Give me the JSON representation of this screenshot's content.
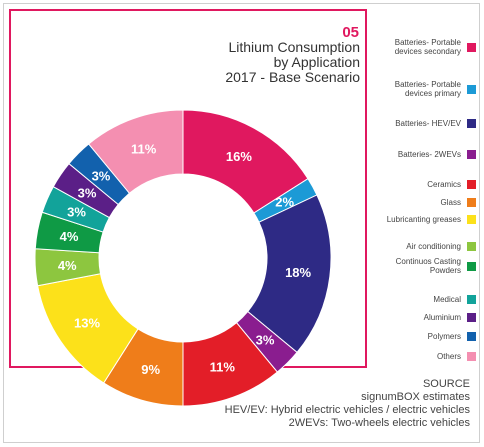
{
  "number": "05",
  "title_lines": [
    "Lithium Consumption",
    "by Application",
    "2017 - Base Scenario"
  ],
  "chart_data": {
    "type": "pie",
    "variant": "donut",
    "slices": [
      {
        "label": "Batteries- Portable devices secondary",
        "value": 16,
        "display": "16%",
        "color": "#e0185f"
      },
      {
        "label": "Batteries- Portable devices primary",
        "value": 2,
        "display": "2%",
        "color": "#1c9ad6"
      },
      {
        "label": "Batteries- HEV/EV",
        "value": 18,
        "display": "18%",
        "color": "#2e2a85"
      },
      {
        "label": "Batteries- 2WEVs",
        "value": 3,
        "display": "3%",
        "color": "#8a1d8f"
      },
      {
        "label": "Ceramics",
        "value": 11,
        "display": "11%",
        "color": "#e31e28"
      },
      {
        "label": "Glass",
        "value": 9,
        "display": "9%",
        "color": "#ef7d1a"
      },
      {
        "label": "Lubricanting greases",
        "value": 13,
        "display": "13%",
        "color": "#fce11a"
      },
      {
        "label": "Air conditioning",
        "value": 4,
        "display": "4%",
        "color": "#8dc63f"
      },
      {
        "label": "Continuos Casting Powders",
        "value": 4,
        "display": "4%",
        "color": "#0f9a45"
      },
      {
        "label": "Medical",
        "value": 3,
        "display": "3%",
        "color": "#12a39a"
      },
      {
        "label": "Aluminium",
        "value": 3,
        "display": "3%",
        "color": "#5b1f87"
      },
      {
        "label": "Polymers",
        "value": 3,
        "display": "3%",
        "color": "#1261ad"
      },
      {
        "label": "Others",
        "value": 11,
        "display": "11%",
        "color": "#f48fb1"
      }
    ],
    "legend_position": "right"
  },
  "footer_lines": [
    "SOURCE",
    "signumBOX estimates",
    "HEV/EV: Hybrid electric vehicles / electric vehicles",
    "2WEVs: Two-wheels electric vehicles"
  ]
}
